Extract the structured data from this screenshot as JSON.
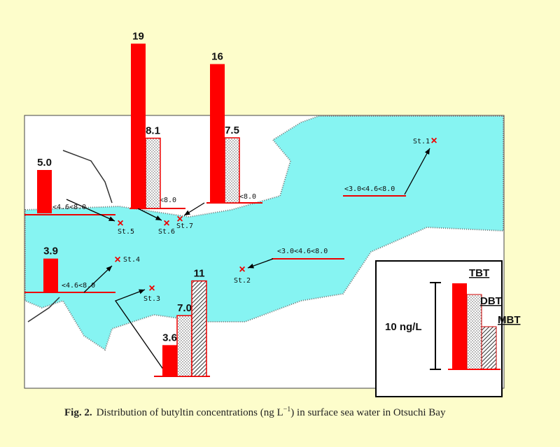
{
  "figure": {
    "caption": {
      "label": "Fig. 2.",
      "text": "Distribution of butyltin concentrations (ng L",
      "superscript": "−1",
      "text_after": ") in surface sea water in Otsuchi Bay"
    },
    "legend": {
      "scale_label": "10 ng/L",
      "scale_value": 10,
      "compounds": [
        "TBT",
        "DBT",
        "MBT"
      ]
    },
    "stations": [
      {
        "name": "St.1",
        "values": [
          null,
          null,
          null
        ],
        "value_labels": [
          null,
          null,
          null
        ],
        "below_limit": "<3.0<4.6<8.0"
      },
      {
        "name": "St.2",
        "values": [
          null,
          null,
          null
        ],
        "value_labels": [
          null,
          null,
          null
        ],
        "below_limit": "<3.0<4.6<8.0"
      },
      {
        "name": "St.3",
        "values": [
          3.6,
          7,
          11
        ],
        "value_labels": [
          "3.6",
          "7.0",
          "11"
        ],
        "below_limit": null
      },
      {
        "name": "St.4",
        "values": [
          3.9,
          null,
          null
        ],
        "value_labels": [
          "3.9",
          null,
          null
        ],
        "below_limit": "<4.6<8.0"
      },
      {
        "name": "St.5",
        "values": [
          5,
          null,
          null
        ],
        "value_labels": [
          "5.0",
          null,
          null
        ],
        "below_limit": "<4.6<8.0"
      },
      {
        "name": "St.6",
        "values": [
          19,
          8.1,
          null
        ],
        "value_labels": [
          "19",
          "8.1",
          null
        ],
        "below_limit": "<8.0"
      },
      {
        "name": "St.7",
        "values": [
          16,
          7.5,
          null
        ],
        "value_labels": [
          "16",
          "7.5",
          null
        ],
        "below_limit": "<8.0"
      }
    ]
  }
}
